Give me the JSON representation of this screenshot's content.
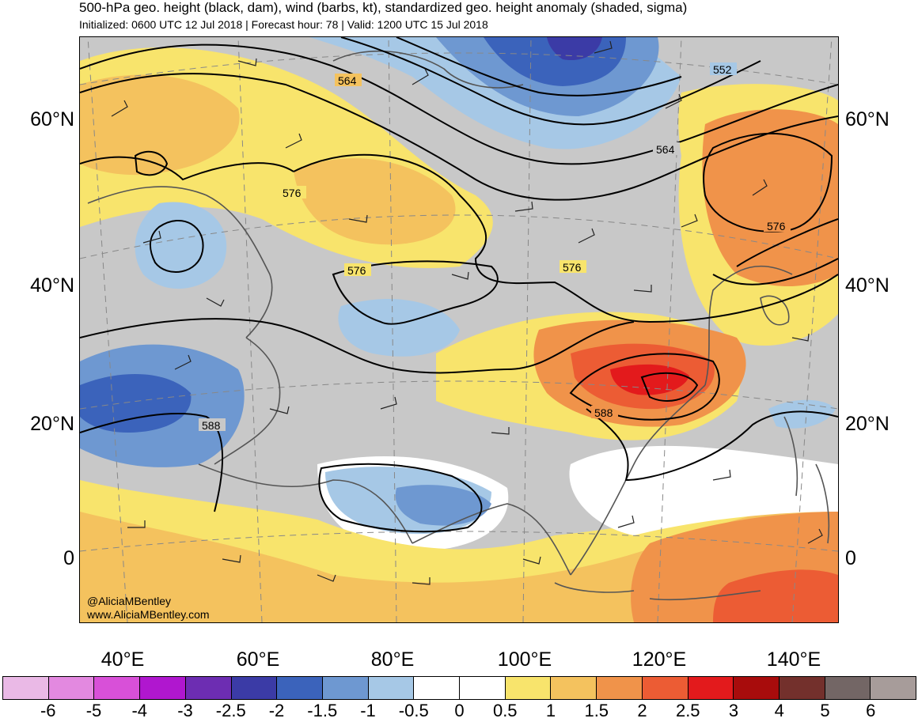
{
  "title": {
    "line1": "500-hPa geo. height (black, dam), wind (barbs, kt), standardized geo. height anomaly (shaded, sigma)",
    "line2": "Initialized: 0600 UTC 12 Jul 2018 | Forecast hour: 78 | Valid: 1200 UTC 15 Jul 2018"
  },
  "axes": {
    "lat_labels": [
      "60°N",
      "40°N",
      "20°N",
      "0"
    ],
    "lon_labels": [
      "40°E",
      "60°E",
      "80°E",
      "100°E",
      "120°E",
      "140°E"
    ]
  },
  "contour_labels": [
    "564",
    "552",
    "564",
    "576",
    "576",
    "576",
    "576",
    "588",
    "588"
  ],
  "credits": {
    "handle": "@AliciaMBentley",
    "site": "www.AliciaMBentley.com"
  },
  "colorbar": {
    "labels": [
      "-6",
      "-5",
      "-4",
      "-3",
      "-2.5",
      "-2",
      "-1.5",
      "-1",
      "-0.5",
      "0",
      "0.5",
      "1",
      "1.5",
      "2",
      "2.5",
      "3",
      "4",
      "5",
      "6"
    ],
    "colors": [
      "#eab9e6",
      "#e389e0",
      "#d850d8",
      "#b017cf",
      "#6d2db2",
      "#3b3ba6",
      "#3b63bb",
      "#6e98d1",
      "#a6c8e6",
      "#ffffff",
      "#ffffff",
      "#f8e46c",
      "#f4c25e",
      "#f0934a",
      "#ec5c34",
      "#e31a1c",
      "#a80c0c",
      "#73302c",
      "#736665",
      "#a79c9a"
    ]
  },
  "colors": {
    "neutral_gray": "#c8c8c8",
    "coast": "#555555",
    "height_contour": "#000000"
  }
}
